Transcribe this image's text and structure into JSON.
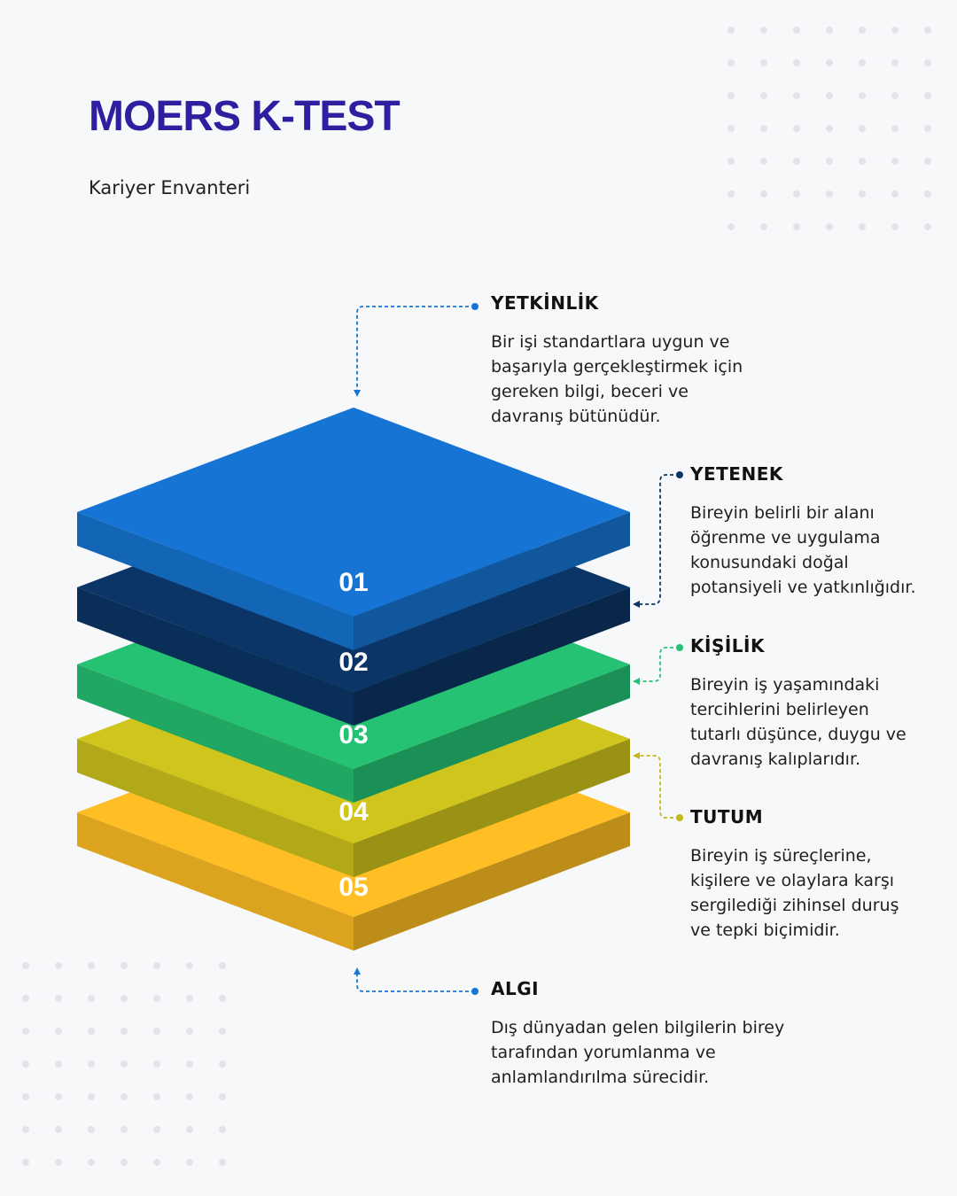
{
  "header": {
    "title": "MOERS K-TEST",
    "subtitle": "Kariyer Envanteri"
  },
  "colors": {
    "title": "#2d1fa0",
    "layer_01": "#1675d4",
    "layer_02": "#0b3566",
    "layer_03": "#25c274",
    "layer_04": "#cfc51c",
    "layer_05": "#ffbe23"
  },
  "layers": [
    {
      "number": "01"
    },
    {
      "number": "02"
    },
    {
      "number": "03"
    },
    {
      "number": "04"
    },
    {
      "number": "05"
    }
  ],
  "labels": {
    "yetkinlik": {
      "title": "YETKİNLİK",
      "lines": [
        "Bir işi standartlara uygun ve",
        "başarıyla gerçekleştirmek için",
        "gereken bilgi, beceri ve",
        "davranış bütünüdür."
      ]
    },
    "yetenek": {
      "title": "YETENEK",
      "lines": [
        "Bireyin belirli bir alanı",
        "öğrenme ve uygulama",
        "konusundaki doğal",
        "potansiyeli ve yatkınlığıdır."
      ]
    },
    "kisilik": {
      "title": "KİŞİLİK",
      "lines": [
        "Bireyin iş yaşamındaki",
        "tercihlerini belirleyen",
        "tutarlı düşünce, duygu ve",
        "davranış kalıplarıdır."
      ]
    },
    "tutum": {
      "title": "TUTUM",
      "lines": [
        "Bireyin iş süreçlerine,",
        "kişilere ve olaylara karşı",
        "sergilediği zihinsel duruş",
        "ve tepki biçimidir."
      ]
    },
    "algi": {
      "title": "ALGI",
      "lines": [
        "Dış dünyadan gelen bilgilerin birey",
        "tarafından yorumlanma ve",
        "anlamlandırılma sürecidir."
      ]
    }
  }
}
